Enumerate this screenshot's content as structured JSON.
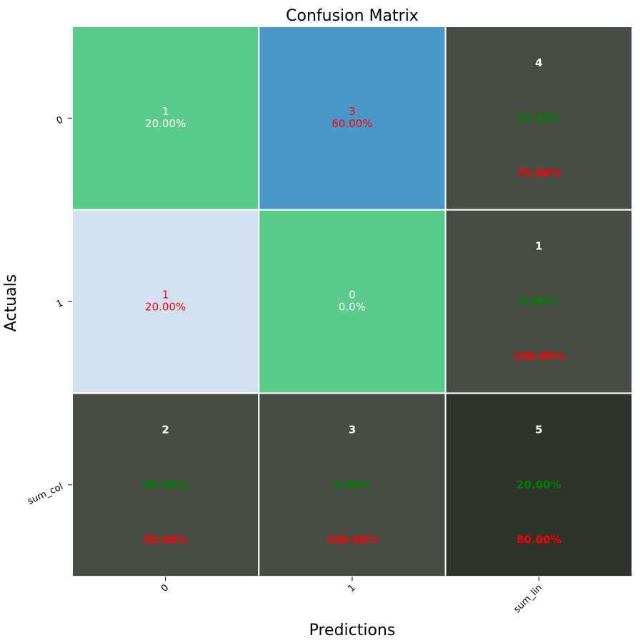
{
  "chart_data": {
    "type": "heatmap",
    "title": "Confusion Matrix",
    "xlabel": "Predictions",
    "ylabel": "Actuals",
    "x_tick_labels": [
      "0",
      "1",
      "sum_lin"
    ],
    "y_tick_labels": [
      "0",
      "1",
      "sum_col"
    ],
    "cells": [
      [
        {
          "kind": "data",
          "count": "1",
          "percent": "20.00%",
          "fill": "#5ACC8A",
          "text_color": "#ffffff"
        },
        {
          "kind": "data",
          "count": "3",
          "percent": "60.00%",
          "fill": "#4A97C9",
          "text_color": "#ff0000"
        },
        {
          "kind": "total",
          "count": "4",
          "pct_correct": "25.00%",
          "pct_error": "75.00%",
          "fill": "#474D45"
        }
      ],
      [
        {
          "kind": "data",
          "count": "1",
          "percent": "20.00%",
          "fill": "#D1E1F1",
          "text_color": "#ff0000"
        },
        {
          "kind": "data",
          "count": "0",
          "percent": "0.0%",
          "fill": "#5ACC8A",
          "text_color": "#ffffff"
        },
        {
          "kind": "total",
          "count": "1",
          "pct_correct": "0.00%",
          "pct_error": "100.00%",
          "fill": "#474D45"
        }
      ],
      [
        {
          "kind": "total",
          "count": "2",
          "pct_correct": "50.00%",
          "pct_error": "50.00%",
          "fill": "#474D45"
        },
        {
          "kind": "total",
          "count": "3",
          "pct_correct": "0.00%",
          "pct_error": "100.00%",
          "fill": "#474D45"
        },
        {
          "kind": "total",
          "count": "5",
          "pct_correct": "20.00%",
          "pct_error": "80.00%",
          "fill": "#2E332C"
        }
      ]
    ],
    "colors": {
      "count_text": "#ffffff",
      "pct_correct_text": "#008000",
      "pct_error_text": "#ff0000",
      "grid_line": "#ffffff"
    }
  }
}
